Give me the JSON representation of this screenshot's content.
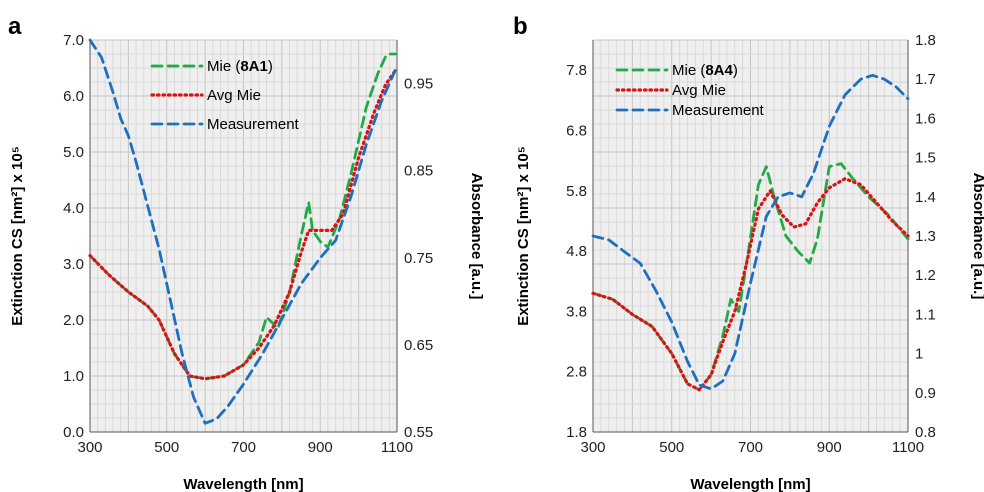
{
  "chart_data": [
    {
      "type": "line",
      "panel_label": "a",
      "xlabel": "Wavelength [nm]",
      "ylabel": "Extinction CS [nm²] x 10⁵",
      "y2label": "Absorbance [a.u.]",
      "xlim": [
        300,
        1100
      ],
      "ylim": [
        0,
        7
      ],
      "y2lim": [
        0.55,
        1.0
      ],
      "xticks": [
        "300",
        "500",
        "700",
        "900",
        "1100"
      ],
      "yticks": [
        "0.0",
        "1.0",
        "2.0",
        "3.0",
        "4.0",
        "5.0",
        "6.0",
        "7.0"
      ],
      "y2ticks": [
        "0.55",
        "0.65",
        "0.75",
        "0.85",
        "0.95"
      ],
      "grid": true,
      "legend_position": "top-center",
      "legend": [
        {
          "label": "Mie (",
          "bold_part": "8A1",
          "suffix": ")",
          "color": "#22aa44",
          "dash": "long"
        },
        {
          "label": "Avg Mie",
          "bold_part": "",
          "suffix": "",
          "color": "#dd1111",
          "dash": "dotted"
        },
        {
          "label": "Measurement",
          "bold_part": "",
          "suffix": "",
          "color": "#1f6fc0",
          "dash": "long"
        }
      ],
      "series": [
        {
          "name": "Mie (8A1)",
          "axis": "left",
          "color": "#22aa44",
          "dash": "long",
          "x": [
            300,
            350,
            400,
            450,
            480,
            520,
            560,
            600,
            650,
            700,
            740,
            760,
            775,
            790,
            820,
            850,
            870,
            880,
            900,
            920,
            950,
            980,
            1000,
            1020,
            1050,
            1070,
            1080,
            1095
          ],
          "y": [
            3.15,
            2.8,
            2.5,
            2.25,
            2.0,
            1.4,
            1.0,
            0.95,
            1.0,
            1.2,
            1.6,
            2.05,
            1.95,
            1.85,
            2.5,
            3.5,
            4.1,
            3.6,
            3.4,
            3.3,
            3.8,
            4.6,
            5.2,
            5.8,
            6.4,
            6.7,
            6.75,
            6.75
          ]
        },
        {
          "name": "Avg Mie",
          "axis": "left",
          "color": "#dd1111",
          "dash": "dotted",
          "x": [
            300,
            350,
            400,
            450,
            480,
            520,
            560,
            600,
            650,
            700,
            740,
            780,
            820,
            850,
            870,
            900,
            930,
            960,
            1000,
            1040,
            1070,
            1095
          ],
          "y": [
            3.15,
            2.8,
            2.5,
            2.25,
            2.0,
            1.4,
            1.0,
            0.95,
            1.0,
            1.2,
            1.5,
            1.9,
            2.5,
            3.2,
            3.6,
            3.6,
            3.6,
            3.9,
            4.9,
            5.7,
            6.2,
            6.45
          ]
        },
        {
          "name": "Measurement",
          "axis": "right",
          "color": "#1f6fc0",
          "dash": "long",
          "x": [
            300,
            330,
            360,
            380,
            400,
            420,
            450,
            480,
            510,
            540,
            570,
            600,
            630,
            660,
            700,
            750,
            800,
            850,
            900,
            940,
            980,
            1020,
            1060,
            1095
          ],
          "y": [
            1.0,
            0.98,
            0.94,
            0.91,
            0.89,
            0.86,
            0.81,
            0.76,
            0.7,
            0.64,
            0.59,
            0.56,
            0.565,
            0.58,
            0.605,
            0.64,
            0.68,
            0.72,
            0.75,
            0.77,
            0.82,
            0.88,
            0.93,
            0.965
          ]
        }
      ]
    },
    {
      "type": "line",
      "panel_label": "b",
      "xlabel": "Wavelength [nm]",
      "ylabel": "Extinction CS [nm²] x 10⁵",
      "y2label": "Absorbance [a.u.]",
      "xlim": [
        300,
        1100
      ],
      "ylim": [
        1.8,
        8.3
      ],
      "y2lim": [
        0.8,
        1.8
      ],
      "xticks": [
        "300",
        "500",
        "700",
        "900",
        "1100"
      ],
      "yticks": [
        "1.8",
        "2.8",
        "3.8",
        "4.8",
        "5.8",
        "6.8",
        "7.8"
      ],
      "y2ticks": [
        "0.8",
        "0.9",
        "1",
        "1.1",
        "1.2",
        "1.3",
        "1.4",
        "1.5",
        "1.6",
        "1.7",
        "1.8"
      ],
      "grid": true,
      "legend_position": "top-left",
      "legend": [
        {
          "label": "Mie (",
          "bold_part": "8A4",
          "suffix": ")",
          "color": "#22aa44",
          "dash": "long"
        },
        {
          "label": "Avg Mie",
          "bold_part": "",
          "suffix": "",
          "color": "#dd1111",
          "dash": "dotted"
        },
        {
          "label": "Measurement",
          "bold_part": "",
          "suffix": "",
          "color": "#1f6fc0",
          "dash": "long"
        }
      ],
      "series": [
        {
          "name": "Mie (8A4)",
          "axis": "left",
          "color": "#22aa44",
          "dash": "long",
          "x": [
            300,
            350,
            400,
            450,
            500,
            540,
            570,
            600,
            630,
            650,
            670,
            690,
            720,
            740,
            760,
            790,
            820,
            850,
            870,
            900,
            930,
            960,
            1000,
            1050,
            1100
          ],
          "y": [
            4.1,
            4.0,
            3.75,
            3.55,
            3.1,
            2.6,
            2.5,
            2.75,
            3.4,
            4.0,
            3.8,
            4.6,
            5.9,
            6.2,
            5.7,
            5.05,
            4.8,
            4.6,
            5.0,
            6.2,
            6.25,
            6.0,
            5.7,
            5.4,
            5.0
          ]
        },
        {
          "name": "Avg Mie",
          "axis": "left",
          "color": "#dd1111",
          "dash": "dotted",
          "x": [
            300,
            350,
            400,
            450,
            500,
            540,
            570,
            600,
            630,
            660,
            690,
            720,
            750,
            780,
            810,
            840,
            870,
            900,
            940,
            980,
            1020,
            1060,
            1100
          ],
          "y": [
            4.1,
            4.0,
            3.75,
            3.55,
            3.1,
            2.6,
            2.5,
            2.75,
            3.3,
            3.8,
            4.6,
            5.5,
            5.8,
            5.4,
            5.2,
            5.25,
            5.6,
            5.85,
            6.0,
            5.9,
            5.6,
            5.3,
            5.05
          ]
        },
        {
          "name": "Measurement",
          "axis": "right",
          "color": "#1f6fc0",
          "dash": "long",
          "x": [
            300,
            340,
            380,
            420,
            460,
            500,
            540,
            570,
            600,
            630,
            660,
            700,
            740,
            770,
            800,
            830,
            860,
            900,
            940,
            980,
            1010,
            1040,
            1070,
            1100
          ],
          "y": [
            1.3,
            1.29,
            1.26,
            1.23,
            1.16,
            1.08,
            0.98,
            0.92,
            0.91,
            0.93,
            1.0,
            1.18,
            1.35,
            1.4,
            1.41,
            1.4,
            1.46,
            1.58,
            1.66,
            1.7,
            1.71,
            1.7,
            1.68,
            1.65
          ]
        }
      ]
    }
  ]
}
